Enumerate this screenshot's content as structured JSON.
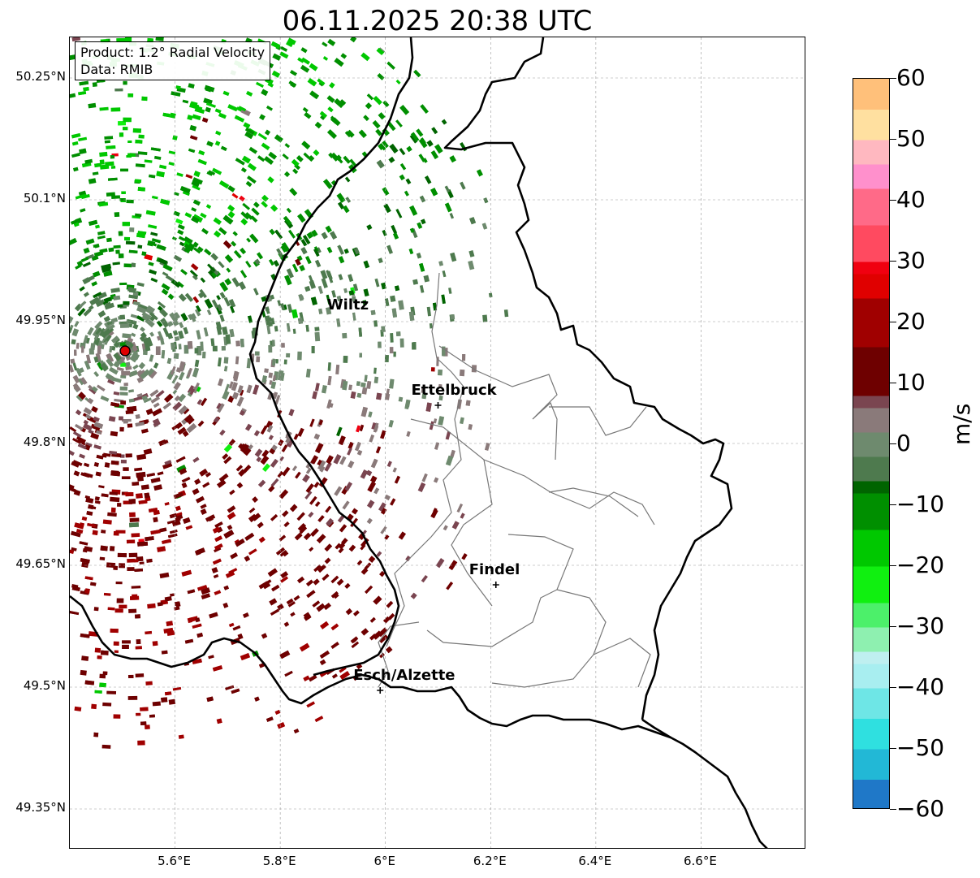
{
  "title": "06.11.2025 20:38 UTC",
  "info_box": {
    "product": "Product: 1.2° Radial Velocity",
    "source": "Data: RMIB"
  },
  "axes": {
    "lat_range": [
      49.3,
      50.3
    ],
    "lon_range": [
      5.4,
      6.8
    ],
    "lat_ticks": [
      {
        "value": 50.25,
        "label": "50.25°N"
      },
      {
        "value": 50.1,
        "label": "50.1°N"
      },
      {
        "value": 49.95,
        "label": "49.95°N"
      },
      {
        "value": 49.8,
        "label": "49.8°N"
      },
      {
        "value": 49.65,
        "label": "49.65°N"
      },
      {
        "value": 49.5,
        "label": "49.5°N"
      },
      {
        "value": 49.35,
        "label": "49.35°N"
      }
    ],
    "lon_ticks": [
      {
        "value": 5.6,
        "label": "5.6°E"
      },
      {
        "value": 5.8,
        "label": "5.8°E"
      },
      {
        "value": 6.0,
        "label": "6°E"
      },
      {
        "value": 6.2,
        "label": "6.2°E"
      },
      {
        "value": 6.4,
        "label": "6.4°E"
      },
      {
        "value": 6.6,
        "label": "6.6°E"
      }
    ],
    "grid": true
  },
  "cities": [
    {
      "name": "Wiltz",
      "lon": 5.94,
      "lat": 49.966,
      "marker": false
    },
    {
      "name": "Ettelbruck",
      "lon": 6.1,
      "lat": 49.847,
      "marker": true
    },
    {
      "name": "Findel",
      "lon": 6.21,
      "lat": 49.626,
      "marker": true
    },
    {
      "name": "Esch/Alzette",
      "lon": 5.99,
      "lat": 49.496,
      "marker": true
    }
  ],
  "radar_site": {
    "lon": 5.505,
    "lat": 49.914,
    "color": "#e00000"
  },
  "colorbar": {
    "label": "m/s",
    "min": -60,
    "max": 60,
    "ticks": [
      {
        "value": 60,
        "label": "60"
      },
      {
        "value": 50,
        "label": "50"
      },
      {
        "value": 40,
        "label": "40"
      },
      {
        "value": 30,
        "label": "30"
      },
      {
        "value": 20,
        "label": "20"
      },
      {
        "value": 10,
        "label": "10"
      },
      {
        "value": 0,
        "label": "0"
      },
      {
        "value": -10,
        "label": "−10"
      },
      {
        "value": -20,
        "label": "−20"
      },
      {
        "value": -30,
        "label": "−30"
      },
      {
        "value": -40,
        "label": "−40"
      },
      {
        "value": -50,
        "label": "−50"
      },
      {
        "value": -60,
        "label": "−60"
      }
    ],
    "stops": [
      {
        "value": -60,
        "color": "#1f78c8"
      },
      {
        "value": -55,
        "color": "#22b8d6"
      },
      {
        "value": -50,
        "color": "#2fe0e0"
      },
      {
        "value": -45,
        "color": "#6ee6e6"
      },
      {
        "value": -40,
        "color": "#a8eef0"
      },
      {
        "value": -36,
        "color": "#bfeff0"
      },
      {
        "value": -34,
        "color": "#8ef0b0"
      },
      {
        "value": -30,
        "color": "#4cf06a"
      },
      {
        "value": -26,
        "color": "#10f010"
      },
      {
        "value": -20,
        "color": "#00c800"
      },
      {
        "value": -14,
        "color": "#008f00"
      },
      {
        "value": -8,
        "color": "#006400"
      },
      {
        "value": -6,
        "color": "#4e7a4e"
      },
      {
        "value": -2,
        "color": "#6e8a6e"
      },
      {
        "value": 2,
        "color": "#8a7a7a"
      },
      {
        "value": 6,
        "color": "#7a4550"
      },
      {
        "value": 8,
        "color": "#6e0000"
      },
      {
        "value": 16,
        "color": "#a00000"
      },
      {
        "value": 24,
        "color": "#e00000"
      },
      {
        "value": 28,
        "color": "#f00010"
      },
      {
        "value": 30,
        "color": "#ff4a60"
      },
      {
        "value": 36,
        "color": "#ff6a88"
      },
      {
        "value": 42,
        "color": "#ff90cc"
      },
      {
        "value": 46,
        "color": "#ffb8c0"
      },
      {
        "value": 50,
        "color": "#ffe0a0"
      },
      {
        "value": 55,
        "color": "#ffc07a"
      },
      {
        "value": 60,
        "color": "#ff9a50"
      }
    ]
  }
}
